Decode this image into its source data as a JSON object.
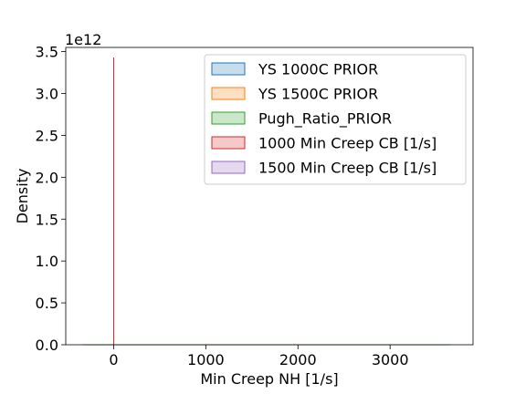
{
  "chart_data": {
    "type": "area",
    "title": "",
    "xlabel": "Min Creep NH [1/s]",
    "ylabel": "Density",
    "y_offset_label": "1e12",
    "xlim": [
      -520,
      3900
    ],
    "ylim": [
      0,
      3.55
    ],
    "x_ticks": [
      0,
      1000,
      2000,
      3000
    ],
    "x_tick_labels": [
      "0",
      "1000",
      "2000",
      "3000"
    ],
    "y_ticks": [
      0,
      0.5,
      1.0,
      1.5,
      2.0,
      2.5,
      3.0,
      3.5
    ],
    "y_tick_labels": [
      "0.0",
      "0.5",
      "1.0",
      "1.5",
      "2.0",
      "2.5",
      "3.0",
      "3.5"
    ],
    "grid": false,
    "legend_position": "upper right",
    "series": [
      {
        "name": "YS 1000C PRIOR",
        "color": "#1f77b4",
        "x": [
          -330,
          3650
        ],
        "y": [
          0,
          0
        ]
      },
      {
        "name": "YS 1500C PRIOR",
        "color": "#ff7f0e",
        "x": [
          -330,
          3650
        ],
        "y": [
          0,
          0
        ]
      },
      {
        "name": "Pugh_Ratio_PRIOR",
        "color": "#2ca02c",
        "x": [
          -330,
          3650
        ],
        "y": [
          0,
          0
        ]
      },
      {
        "name": "1000 Min Creep CB [1/s]",
        "color": "#d62728",
        "x": [
          0,
          0,
          0
        ],
        "y": [
          0,
          3.43,
          0
        ]
      },
      {
        "name": "1500 Min Creep CB [1/s]",
        "color": "#9467bd",
        "x": [
          0,
          0,
          0
        ],
        "y": [
          0,
          0,
          0
        ]
      }
    ]
  }
}
